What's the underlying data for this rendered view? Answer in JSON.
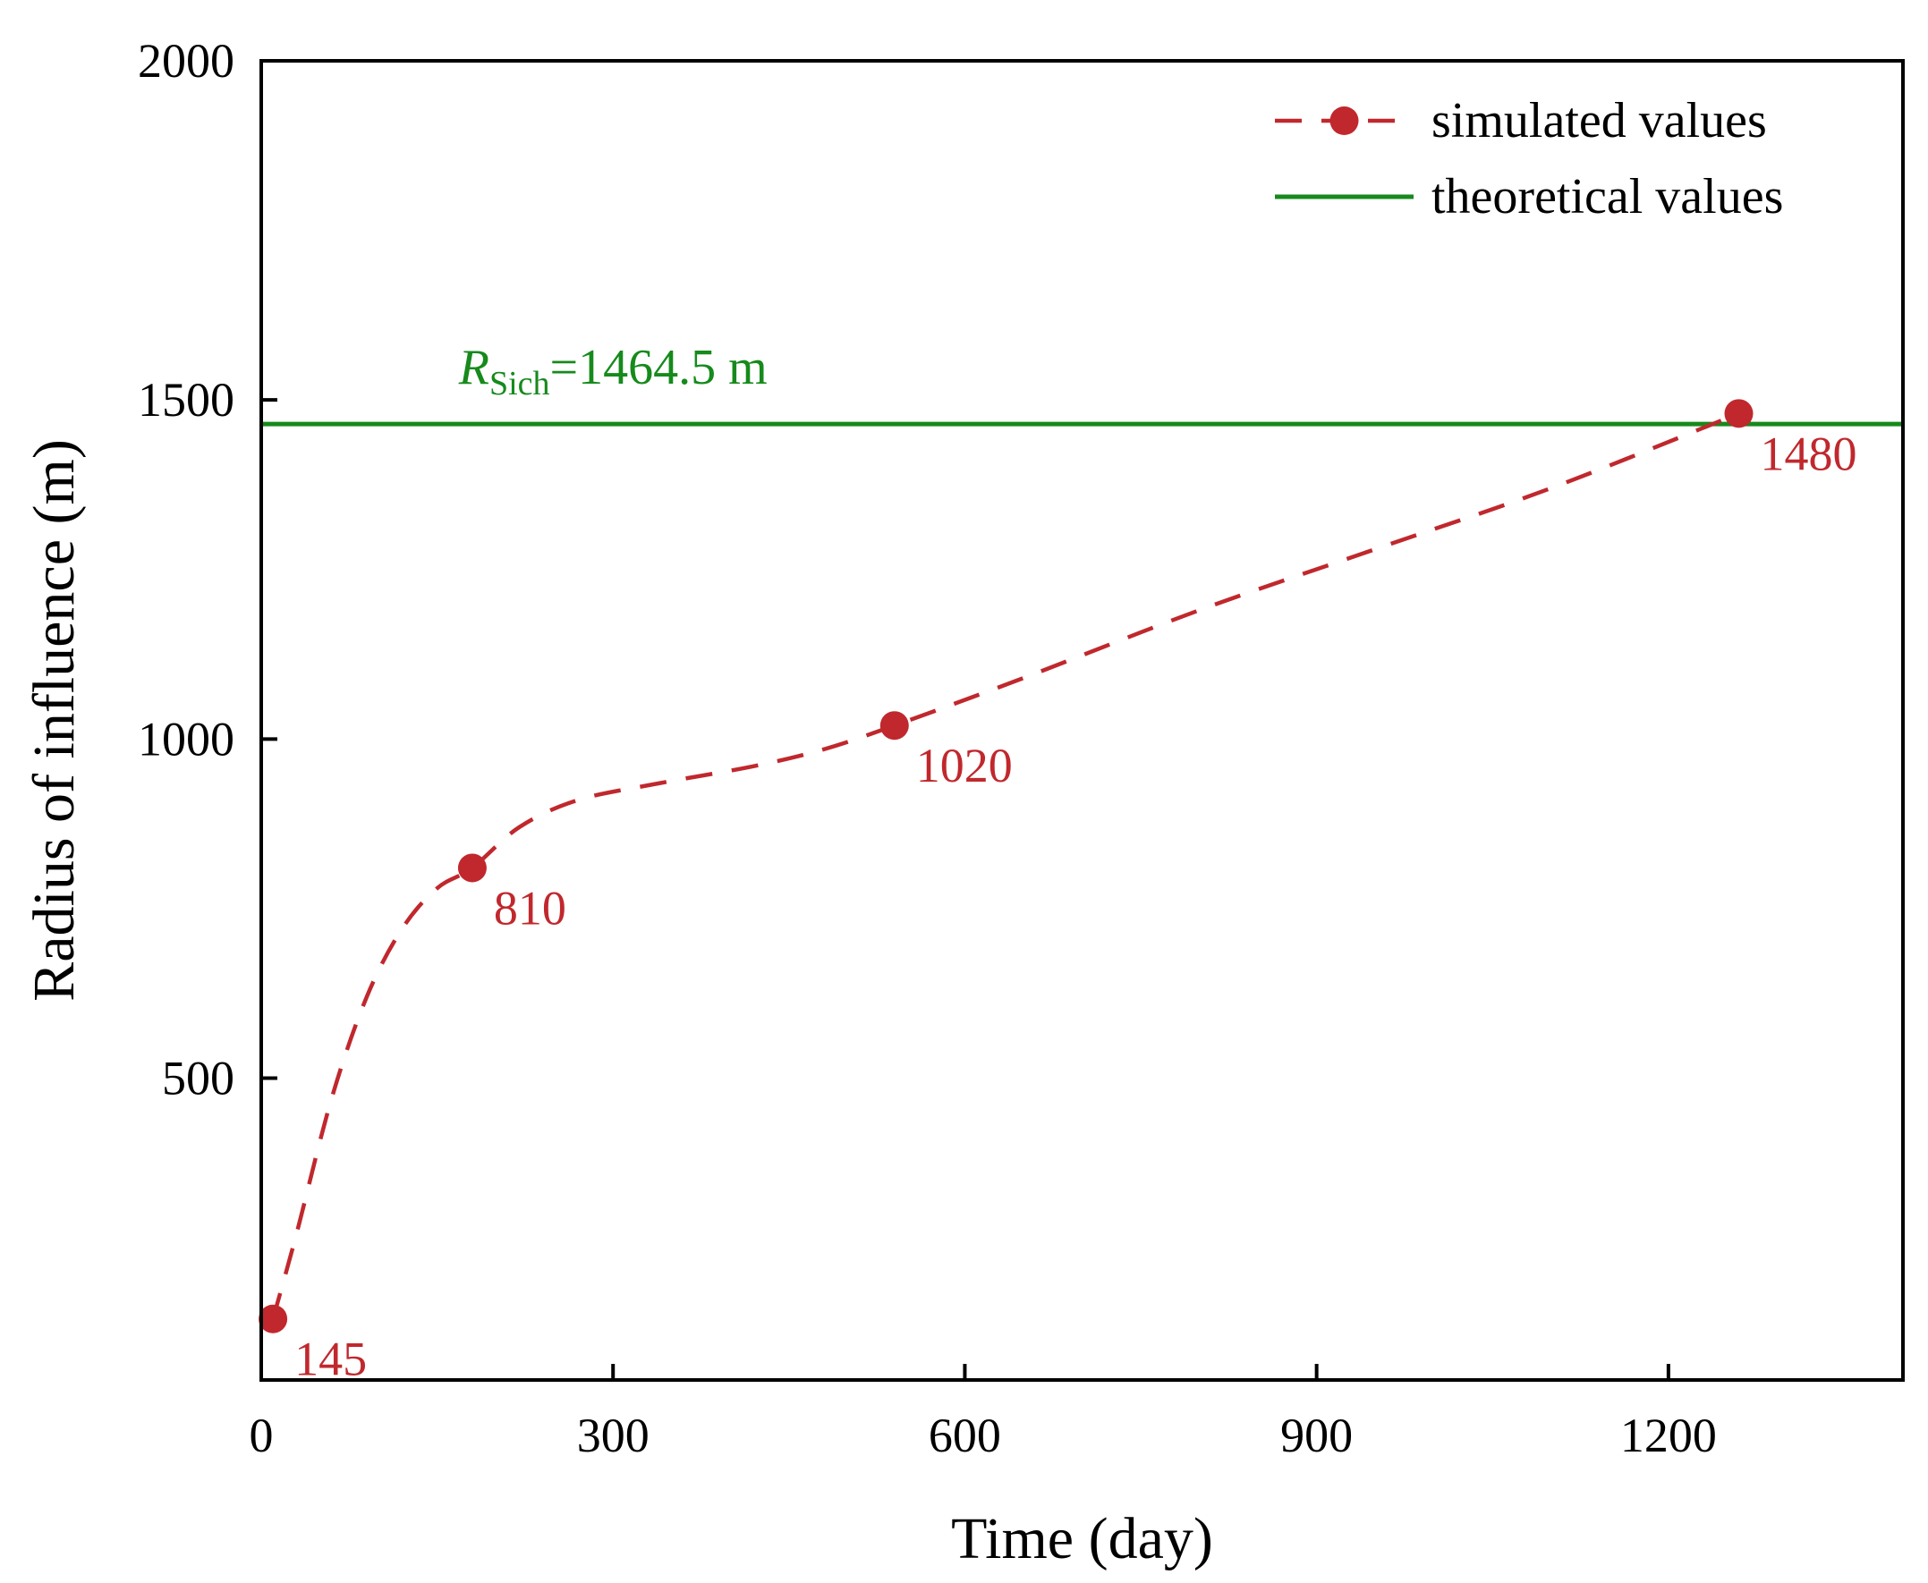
{
  "chart_data": {
    "type": "line",
    "xlabel": "Time (day)",
    "ylabel": "Radius of influence (m)",
    "xlim": [
      0,
      1400
    ],
    "ylim": [
      55,
      2000
    ],
    "x_ticks": [
      0,
      300,
      600,
      900,
      1200
    ],
    "y_ticks": [
      500,
      1000,
      1500,
      2000
    ],
    "grid": false,
    "legend_position": "top-right",
    "series": [
      {
        "name": "simulated values",
        "style": "dashed-with-markers",
        "color": "#c0282d",
        "x": [
          10,
          180,
          540,
          1260
        ],
        "y": [
          145,
          810,
          1020,
          1480
        ],
        "labels": [
          "145",
          "810",
          "1020",
          "1480"
        ],
        "curve_x": [
          10,
          30,
          60,
          90,
          120,
          150,
          180,
          220,
          270,
          340,
          420,
          480,
          540,
          650,
          800,
          950,
          1100,
          1260
        ],
        "curve_y": [
          145,
          270,
          470,
          620,
          720,
          780,
          810,
          870,
          910,
          935,
          960,
          985,
          1020,
          1090,
          1190,
          1280,
          1370,
          1480
        ]
      },
      {
        "name": "theoretical values",
        "style": "solid",
        "color": "#168a1c",
        "y": 1464.5
      }
    ],
    "annotation": {
      "symbol": "R",
      "subscript": "Sich",
      "text": "=1464.5 m"
    }
  }
}
